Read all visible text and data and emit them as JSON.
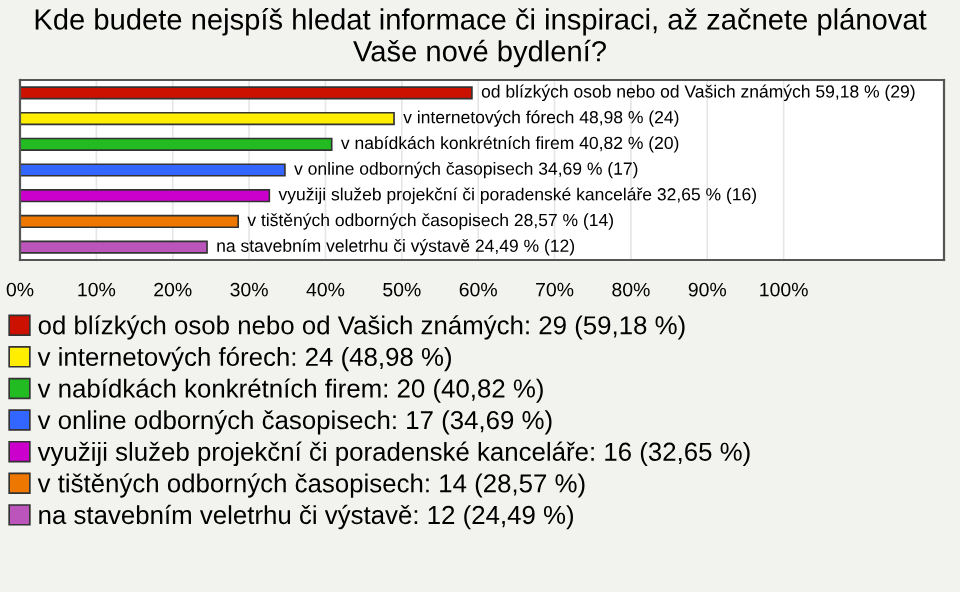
{
  "chart_data": {
    "type": "bar",
    "orientation": "horizontal",
    "title": "Kde budete nejspíš hledat informace či inspiraci, až začnete plánovat Vaše nové bydlení?",
    "categories": [
      null,
      null,
      null,
      null,
      null,
      null,
      null
    ],
    "series": [
      {
        "name": "od blízkých osob nebo od Vašich známých: 29 (59,18 %)",
        "color": "#cc1100",
        "values": [
          59.18,
          null,
          null,
          null,
          null,
          null,
          null
        ],
        "value_labels": [
          "od blízkých osob nebo od Vašich známých 59,18 % (29)",
          null,
          null,
          null,
          null,
          null,
          null
        ]
      },
      {
        "name": "v internetových fórech: 24 (48,98 %)",
        "color": "#ffee00",
        "values": [
          null,
          48.98,
          null,
          null,
          null,
          null,
          null
        ],
        "value_labels": [
          null,
          "v internetových fórech 48,98 % (24)",
          null,
          null,
          null,
          null,
          null
        ]
      },
      {
        "name": "v nabídkách konkrétních firem: 20 (40,82 %)",
        "color": "#22bb22",
        "values": [
          null,
          null,
          40.82,
          null,
          null,
          null,
          null
        ],
        "value_labels": [
          null,
          null,
          "v nabídkách konkrétních firem 40,82 % (20)",
          null,
          null,
          null,
          null
        ]
      },
      {
        "name": "v online odborných časopisech: 17 (34,69 %)",
        "color": "#3366ff",
        "values": [
          null,
          null,
          null,
          34.69,
          null,
          null,
          null
        ],
        "value_labels": [
          null,
          null,
          null,
          "v online odborných časopisech 34,69 % (17)",
          null,
          null,
          null
        ]
      },
      {
        "name": "využiji služeb projekční či poradenské kanceláře: 16 (32,65 %)",
        "color": "#cc00cc",
        "values": [
          null,
          null,
          null,
          null,
          32.65,
          null,
          null
        ],
        "value_labels": [
          null,
          null,
          null,
          null,
          "využiji služeb projekční či poradenské kanceláře 32,65 % (16)",
          null,
          null
        ]
      },
      {
        "name": "v tištěných odborných časopisech: 14 (28,57 %)",
        "color": "#ee7700",
        "values": [
          null,
          null,
          null,
          null,
          null,
          28.57,
          null
        ],
        "value_labels": [
          null,
          null,
          null,
          null,
          null,
          "v tištěných odborných časopisech 28,57 % (14)",
          null
        ]
      },
      {
        "name": "na stavebním veletrhu či výstavě: 12 (24,49 %)",
        "color": "#bb55bb",
        "values": [
          null,
          null,
          null,
          null,
          null,
          null,
          24.49
        ],
        "value_labels": [
          null,
          null,
          null,
          null,
          null,
          null,
          "na stavebním veletrhu či výstavě 24,49 % (12)"
        ]
      }
    ],
    "xlim": [
      0,
      121
    ],
    "xticks": [
      {
        "value": 0,
        "label": "0%"
      },
      {
        "value": 10,
        "label": "10%"
      },
      {
        "value": 20,
        "label": "20%"
      },
      {
        "value": 30,
        "label": "30%"
      },
      {
        "value": 40,
        "label": "40%"
      },
      {
        "value": 50,
        "label": "50%"
      },
      {
        "value": 60,
        "label": "60%"
      },
      {
        "value": 70,
        "label": "70%"
      },
      {
        "value": 80,
        "label": "80%"
      },
      {
        "value": 90,
        "label": "90%"
      },
      {
        "value": 100,
        "label": "100%"
      }
    ],
    "grid": "x",
    "legend": "bottom"
  }
}
